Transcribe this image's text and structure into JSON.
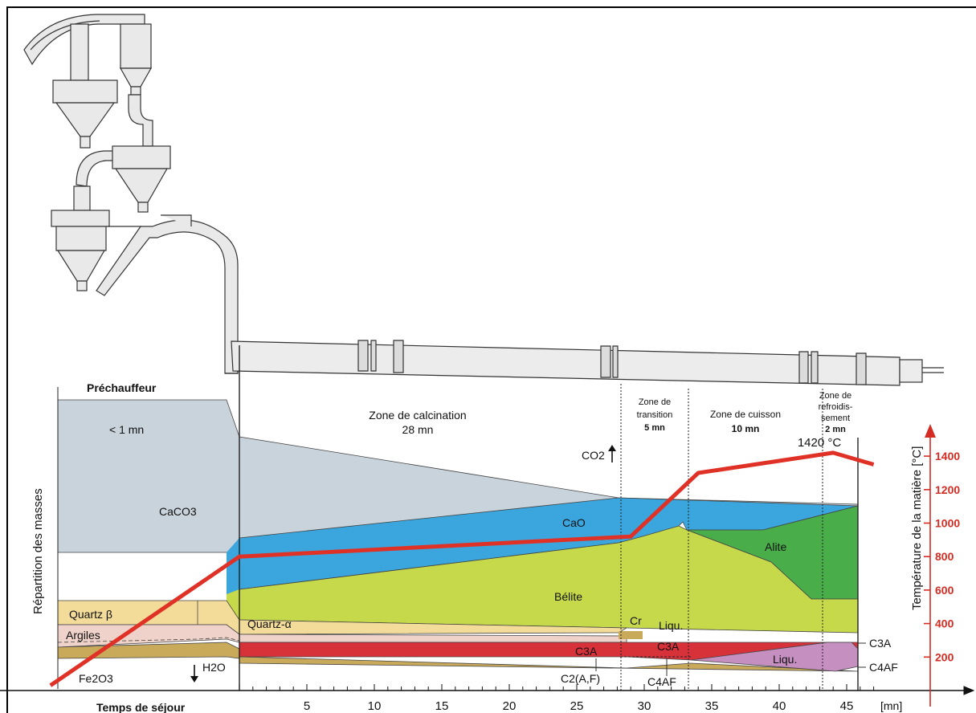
{
  "zones": {
    "preheater": {
      "title": "Préchauffeur",
      "time": "< 1 mn"
    },
    "calcination": {
      "title": "Zone de calcination",
      "time": "28 mn"
    },
    "transition": {
      "line1": "Zone de",
      "line2": "transition",
      "time": "5 mn"
    },
    "firing": {
      "title": "Zone de cuisson",
      "time": "10 mn"
    },
    "cooling": {
      "line1": "Zone de",
      "line2": "refroidis-",
      "line3": "sement",
      "time": "2 mn"
    }
  },
  "materials": {
    "caco3": "CaCO3",
    "cao": "CaO",
    "alite": "Alite",
    "belite": "Bélite",
    "quartz_beta": "Quartz β",
    "quartz_alpha": "Quartz-α",
    "argiles": "Argiles",
    "fe2o3": "Fe2O3",
    "h2o": "H2O",
    "co2": "CO2",
    "cr": "Cr",
    "liquid_short": "Liqu.",
    "liquid": "Liqu.",
    "c3a_mid": "C3A",
    "c3a_late": "C3A",
    "c2af_mid": "C2(A,F)",
    "c4af_mid": "C4AF",
    "c3a_right": "C3A",
    "c4af_right": "C4AF"
  },
  "axes": {
    "left_label": "Répartition des masses",
    "right_label": "Température de la matière [°C]",
    "x_label": "Temps de séjour",
    "x_unit": "[mn]",
    "x_ticks": [
      "5",
      "10",
      "15",
      "20",
      "25",
      "30",
      "35",
      "40",
      "45"
    ],
    "y_ticks": [
      "200",
      "400",
      "600",
      "800",
      "1000",
      "1200",
      "1400"
    ]
  },
  "peak_label": "1420 °C",
  "colors": {
    "caco3": "#c8d3dc",
    "cao": "#3aa6dd",
    "alite": "#49ad4a",
    "belite": "#c6d94a",
    "quartz": "#f3dc9a",
    "argiles": "#efd2c9",
    "fe2o3": "#c9a95a",
    "c3a": "#d7313a",
    "liquid": "#c58fc0",
    "temperature": "#e03127",
    "axis_red": "#d42c22"
  },
  "chart_data": {
    "type": "line",
    "xlabel": "Temps de séjour",
    "ylabel": "Température de la matière [°C]",
    "x_unit": "mn",
    "xlim": [
      -14,
      48
    ],
    "ylim": [
      0,
      1500
    ],
    "series": [
      {
        "points": [
          [
            -14,
            30
          ],
          [
            0,
            800
          ],
          [
            29,
            920
          ],
          [
            34,
            1300
          ],
          [
            44,
            1420
          ],
          [
            47,
            1350
          ]
        ]
      }
    ]
  }
}
